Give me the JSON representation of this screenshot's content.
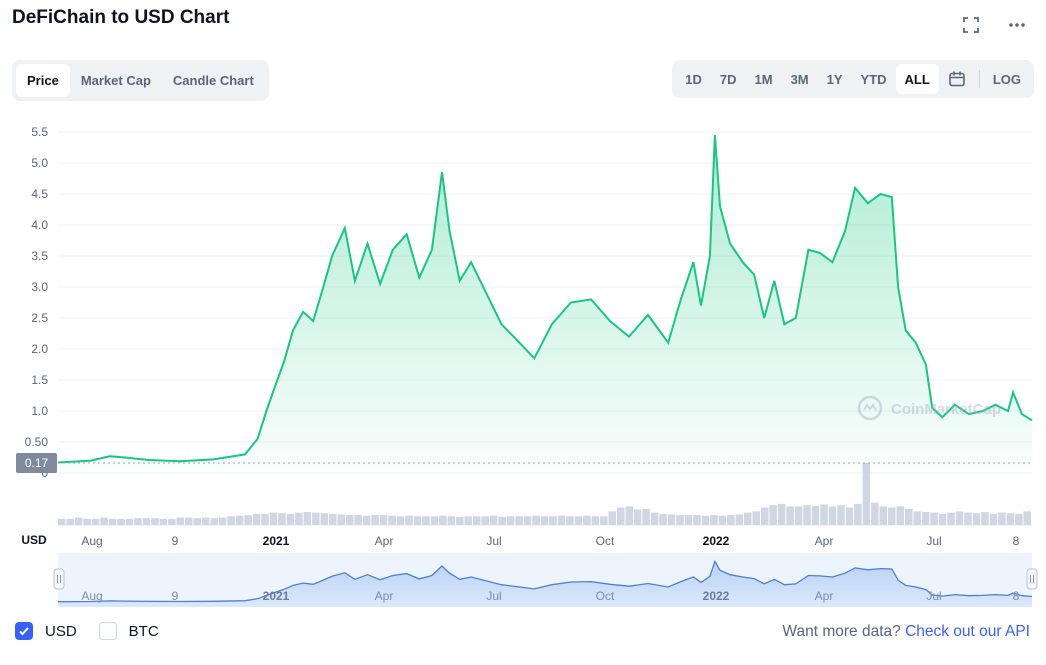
{
  "header": {
    "title": "DeFiChain to USD Chart"
  },
  "icons": {
    "fullscreen": "fullscreen-icon",
    "more": "more-icon",
    "calendar": "calendar-icon"
  },
  "tabs": [
    {
      "label": "Price",
      "active": true
    },
    {
      "label": "Market Cap",
      "active": false
    },
    {
      "label": "Candle Chart",
      "active": false
    }
  ],
  "ranges": [
    {
      "label": "1D",
      "active": false
    },
    {
      "label": "7D",
      "active": false
    },
    {
      "label": "1M",
      "active": false
    },
    {
      "label": "3M",
      "active": false
    },
    {
      "label": "1Y",
      "active": false
    },
    {
      "label": "YTD",
      "active": false
    },
    {
      "label": "ALL",
      "active": true
    }
  ],
  "log_label": "LOG",
  "colors": {
    "line": "#16c784",
    "accent": "#3861fb",
    "current_badge": "#808a9d"
  },
  "chart_data": {
    "type": "area",
    "y_unit_label": "USD",
    "yticks": [
      "5.5",
      "5.0",
      "4.5",
      "4.0",
      "3.5",
      "3.0",
      "2.5",
      "2.0",
      "1.5",
      "1.0",
      "0.50",
      "0"
    ],
    "ylim": [
      0,
      5.6
    ],
    "current_price": "0.17",
    "xticks": [
      {
        "label": "Aug",
        "strong": false
      },
      {
        "label": "9",
        "strong": false
      },
      {
        "label": "2021",
        "strong": true
      },
      {
        "label": "Apr",
        "strong": false
      },
      {
        "label": "Jul",
        "strong": false
      },
      {
        "label": "Oct",
        "strong": false
      },
      {
        "label": "2022",
        "strong": true
      },
      {
        "label": "Apr",
        "strong": false
      },
      {
        "label": "Jul",
        "strong": false
      },
      {
        "label": "8",
        "strong": false
      }
    ],
    "x_range": [
      "2020-07",
      "2022-08"
    ],
    "price_series": [
      [
        "2020-07-10",
        0.17
      ],
      [
        "2020-08-05",
        0.2
      ],
      [
        "2020-08-20",
        0.27
      ],
      [
        "2020-09-01",
        0.25
      ],
      [
        "2020-09-20",
        0.21
      ],
      [
        "2020-10-15",
        0.19
      ],
      [
        "2020-11-10",
        0.22
      ],
      [
        "2020-12-05",
        0.3
      ],
      [
        "2020-12-15",
        0.55
      ],
      [
        "2020-12-22",
        1.0
      ],
      [
        "2020-12-28",
        1.35
      ],
      [
        "2021-01-05",
        1.8
      ],
      [
        "2021-01-12",
        2.3
      ],
      [
        "2021-01-20",
        2.6
      ],
      [
        "2021-01-28",
        2.45
      ],
      [
        "2021-02-05",
        3.0
      ],
      [
        "2021-02-12",
        3.5
      ],
      [
        "2021-02-22",
        3.95
      ],
      [
        "2021-03-02",
        3.1
      ],
      [
        "2021-03-12",
        3.7
      ],
      [
        "2021-03-22",
        3.05
      ],
      [
        "2021-04-01",
        3.6
      ],
      [
        "2021-04-12",
        3.85
      ],
      [
        "2021-04-22",
        3.15
      ],
      [
        "2021-05-02",
        3.6
      ],
      [
        "2021-05-10",
        4.85
      ],
      [
        "2021-05-16",
        3.9
      ],
      [
        "2021-05-24",
        3.1
      ],
      [
        "2021-06-02",
        3.4
      ],
      [
        "2021-06-14",
        2.9
      ],
      [
        "2021-06-26",
        2.4
      ],
      [
        "2021-07-08",
        2.15
      ],
      [
        "2021-07-22",
        1.85
      ],
      [
        "2021-08-05",
        2.4
      ],
      [
        "2021-08-20",
        2.75
      ],
      [
        "2021-09-05",
        2.8
      ],
      [
        "2021-09-20",
        2.45
      ],
      [
        "2021-10-05",
        2.2
      ],
      [
        "2021-10-20",
        2.55
      ],
      [
        "2021-11-05",
        2.1
      ],
      [
        "2021-11-15",
        2.8
      ],
      [
        "2021-11-25",
        3.4
      ],
      [
        "2021-12-01",
        2.7
      ],
      [
        "2021-12-08",
        3.5
      ],
      [
        "2021-12-12",
        5.45
      ],
      [
        "2021-12-16",
        4.3
      ],
      [
        "2021-12-24",
        3.7
      ],
      [
        "2022-01-03",
        3.4
      ],
      [
        "2022-01-12",
        3.2
      ],
      [
        "2022-01-20",
        2.5
      ],
      [
        "2022-01-28",
        3.1
      ],
      [
        "2022-02-05",
        2.4
      ],
      [
        "2022-02-14",
        2.5
      ],
      [
        "2022-02-24",
        3.6
      ],
      [
        "2022-03-05",
        3.55
      ],
      [
        "2022-03-15",
        3.4
      ],
      [
        "2022-03-25",
        3.9
      ],
      [
        "2022-04-02",
        4.6
      ],
      [
        "2022-04-12",
        4.35
      ],
      [
        "2022-04-22",
        4.5
      ],
      [
        "2022-05-01",
        4.45
      ],
      [
        "2022-05-06",
        3.0
      ],
      [
        "2022-05-12",
        2.3
      ],
      [
        "2022-05-20",
        2.1
      ],
      [
        "2022-05-28",
        1.75
      ],
      [
        "2022-06-02",
        1.05
      ],
      [
        "2022-06-10",
        0.9
      ],
      [
        "2022-06-20",
        1.1
      ],
      [
        "2022-07-01",
        0.95
      ],
      [
        "2022-07-12",
        1.0
      ],
      [
        "2022-07-22",
        1.1
      ],
      [
        "2022-08-01",
        1.0
      ],
      [
        "2022-08-05",
        1.3
      ],
      [
        "2022-08-12",
        0.95
      ],
      [
        "2022-08-20",
        0.85
      ]
    ],
    "volume_relative": [
      0.1,
      0.1,
      0.12,
      0.1,
      0.1,
      0.12,
      0.1,
      0.1,
      0.1,
      0.11,
      0.11,
      0.11,
      0.1,
      0.1,
      0.12,
      0.12,
      0.11,
      0.12,
      0.11,
      0.12,
      0.14,
      0.15,
      0.16,
      0.18,
      0.18,
      0.2,
      0.19,
      0.18,
      0.2,
      0.21,
      0.2,
      0.19,
      0.18,
      0.17,
      0.16,
      0.16,
      0.15,
      0.16,
      0.16,
      0.15,
      0.14,
      0.15,
      0.14,
      0.14,
      0.14,
      0.15,
      0.14,
      0.13,
      0.14,
      0.14,
      0.14,
      0.15,
      0.13,
      0.14,
      0.14,
      0.14,
      0.15,
      0.14,
      0.14,
      0.15,
      0.14,
      0.14,
      0.15,
      0.14,
      0.14,
      0.22,
      0.28,
      0.3,
      0.25,
      0.26,
      0.2,
      0.18,
      0.17,
      0.16,
      0.16,
      0.16,
      0.15,
      0.16,
      0.15,
      0.16,
      0.17,
      0.2,
      0.22,
      0.28,
      0.32,
      0.34,
      0.3,
      0.3,
      0.32,
      0.31,
      0.33,
      0.3,
      0.32,
      0.28,
      0.34,
      1.0,
      0.36,
      0.3,
      0.28,
      0.3,
      0.26,
      0.22,
      0.21,
      0.2,
      0.18,
      0.2,
      0.22,
      0.2,
      0.19,
      0.21,
      0.18,
      0.2,
      0.19,
      0.18,
      0.22
    ]
  },
  "legend": [
    {
      "label": "USD",
      "checked": true
    },
    {
      "label": "BTC",
      "checked": false
    }
  ],
  "footer": {
    "prefix": "Want more data?",
    "link": "Check out our API"
  },
  "watermark": "CoinMarketCap"
}
